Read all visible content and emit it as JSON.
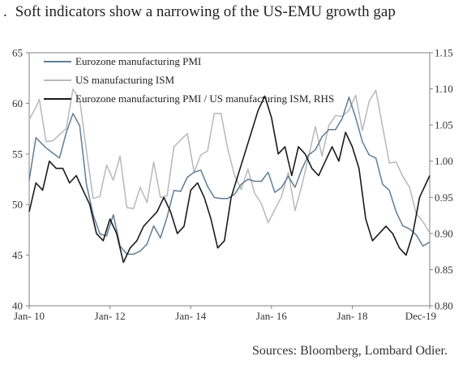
{
  "title": {
    "bullet": ".",
    "text": "Soft indicators show a narrowing of the US-EMU growth gap"
  },
  "source": "Sources: Bloomberg, Lombard Odier.",
  "colors": {
    "eurozone": "#5f7d95",
    "us": "#b8b8b8",
    "ratio": "#1a1a1a",
    "axis": "#808080"
  },
  "chart_data": {
    "type": "line",
    "title": "Soft indicators show a narrowing of the US-EMU growth gap",
    "x_range": [
      "2010-01",
      "2019-12"
    ],
    "y_left": {
      "min": 40,
      "max": 65,
      "ticks": [
        "40",
        "45",
        "50",
        "55",
        "60",
        "65"
      ]
    },
    "y_right": {
      "min": 0.8,
      "max": 1.15,
      "ticks": [
        "0.80",
        "0.85",
        "0.90",
        "0.95",
        "1.00",
        "1.05",
        "1.10",
        "1.15"
      ]
    },
    "x_ticks": [
      {
        "date": "2010-01",
        "label": "Jan- 10"
      },
      {
        "date": "2012-01",
        "label": "Jan- 12"
      },
      {
        "date": "2014-01",
        "label": "Jan- 14"
      },
      {
        "date": "2016-01",
        "label": "Jan- 16"
      },
      {
        "date": "2018-01",
        "label": "Jan- 18"
      },
      {
        "date": "2019-12",
        "label": "Dec-19"
      }
    ],
    "legend_position": "top-left",
    "series": [
      {
        "name": "Eurozone manufacturing PMI",
        "axis": "left",
        "points": [
          [
            "2010-01",
            52.4
          ],
          [
            "2010-03",
            56.6
          ],
          [
            "2010-06",
            55.6
          ],
          [
            "2010-08",
            55.1
          ],
          [
            "2010-10",
            54.6
          ],
          [
            "2010-12",
            57.1
          ],
          [
            "2011-02",
            59.0
          ],
          [
            "2011-04",
            57.8
          ],
          [
            "2011-06",
            52.0
          ],
          [
            "2011-08",
            49.0
          ],
          [
            "2011-10",
            47.1
          ],
          [
            "2011-12",
            46.9
          ],
          [
            "2012-02",
            49.0
          ],
          [
            "2012-04",
            45.9
          ],
          [
            "2012-06",
            45.1
          ],
          [
            "2012-08",
            45.1
          ],
          [
            "2012-10",
            45.4
          ],
          [
            "2012-12",
            46.1
          ],
          [
            "2013-02",
            47.9
          ],
          [
            "2013-04",
            46.7
          ],
          [
            "2013-06",
            48.8
          ],
          [
            "2013-08",
            51.4
          ],
          [
            "2013-10",
            51.3
          ],
          [
            "2013-12",
            52.7
          ],
          [
            "2014-02",
            53.2
          ],
          [
            "2014-04",
            53.4
          ],
          [
            "2014-06",
            51.8
          ],
          [
            "2014-08",
            50.7
          ],
          [
            "2014-10",
            50.6
          ],
          [
            "2014-12",
            50.6
          ],
          [
            "2015-02",
            51.0
          ],
          [
            "2015-04",
            52.0
          ],
          [
            "2015-06",
            52.5
          ],
          [
            "2015-08",
            52.3
          ],
          [
            "2015-10",
            52.3
          ],
          [
            "2015-12",
            53.2
          ],
          [
            "2016-02",
            51.2
          ],
          [
            "2016-04",
            51.7
          ],
          [
            "2016-06",
            52.8
          ],
          [
            "2016-08",
            51.7
          ],
          [
            "2016-10",
            53.5
          ],
          [
            "2016-12",
            54.9
          ],
          [
            "2017-02",
            55.4
          ],
          [
            "2017-04",
            56.7
          ],
          [
            "2017-06",
            57.4
          ],
          [
            "2017-08",
            57.4
          ],
          [
            "2017-10",
            58.5
          ],
          [
            "2017-12",
            60.6
          ],
          [
            "2018-02",
            58.6
          ],
          [
            "2018-04",
            56.2
          ],
          [
            "2018-06",
            54.9
          ],
          [
            "2018-08",
            54.6
          ],
          [
            "2018-10",
            52.0
          ],
          [
            "2018-12",
            51.4
          ],
          [
            "2019-02",
            49.3
          ],
          [
            "2019-04",
            47.9
          ],
          [
            "2019-06",
            47.6
          ],
          [
            "2019-08",
            47.0
          ],
          [
            "2019-10",
            45.9
          ],
          [
            "2019-12",
            46.3
          ]
        ]
      },
      {
        "name": "US manufacturing ISM",
        "axis": "left",
        "points": [
          [
            "2010-01",
            58.4
          ],
          [
            "2010-03",
            59.6
          ],
          [
            "2010-04",
            60.4
          ],
          [
            "2010-06",
            56.2
          ],
          [
            "2010-08",
            56.3
          ],
          [
            "2010-10",
            56.9
          ],
          [
            "2010-12",
            57.5
          ],
          [
            "2011-02",
            61.4
          ],
          [
            "2011-04",
            60.4
          ],
          [
            "2011-06",
            55.3
          ],
          [
            "2011-08",
            50.6
          ],
          [
            "2011-10",
            50.8
          ],
          [
            "2011-12",
            53.9
          ],
          [
            "2012-02",
            52.4
          ],
          [
            "2012-04",
            54.8
          ],
          [
            "2012-06",
            49.7
          ],
          [
            "2012-08",
            49.6
          ],
          [
            "2012-10",
            51.7
          ],
          [
            "2012-12",
            50.2
          ],
          [
            "2013-02",
            54.2
          ],
          [
            "2013-04",
            50.7
          ],
          [
            "2013-06",
            50.9
          ],
          [
            "2013-08",
            55.7
          ],
          [
            "2013-10",
            56.4
          ],
          [
            "2013-12",
            57.0
          ],
          [
            "2014-02",
            53.2
          ],
          [
            "2014-04",
            54.9
          ],
          [
            "2014-06",
            55.3
          ],
          [
            "2014-08",
            59.0
          ],
          [
            "2014-10",
            59.0
          ],
          [
            "2014-12",
            55.5
          ],
          [
            "2015-02",
            52.9
          ],
          [
            "2015-04",
            51.5
          ],
          [
            "2015-06",
            53.5
          ],
          [
            "2015-08",
            51.1
          ],
          [
            "2015-10",
            50.1
          ],
          [
            "2015-12",
            48.2
          ],
          [
            "2016-02",
            49.5
          ],
          [
            "2016-04",
            50.8
          ],
          [
            "2016-06",
            53.2
          ],
          [
            "2016-08",
            49.4
          ],
          [
            "2016-10",
            51.9
          ],
          [
            "2016-12",
            54.7
          ],
          [
            "2017-02",
            57.7
          ],
          [
            "2017-04",
            54.8
          ],
          [
            "2017-06",
            57.8
          ],
          [
            "2017-08",
            58.8
          ],
          [
            "2017-10",
            58.7
          ],
          [
            "2017-12",
            59.3
          ],
          [
            "2018-02",
            60.8
          ],
          [
            "2018-04",
            57.3
          ],
          [
            "2018-06",
            60.2
          ],
          [
            "2018-08",
            61.3
          ],
          [
            "2018-10",
            57.7
          ],
          [
            "2018-12",
            54.1
          ],
          [
            "2019-02",
            54.2
          ],
          [
            "2019-04",
            52.8
          ],
          [
            "2019-06",
            51.7
          ],
          [
            "2019-08",
            49.1
          ],
          [
            "2019-10",
            48.3
          ],
          [
            "2019-12",
            47.2
          ]
        ]
      },
      {
        "name": "Eurozone manufacturing PMI / US manufacturing ISM, RHS",
        "axis": "right",
        "points": [
          [
            "2010-01",
            0.93
          ],
          [
            "2010-03",
            0.97
          ],
          [
            "2010-05",
            0.96
          ],
          [
            "2010-07",
            1.0
          ],
          [
            "2010-09",
            0.99
          ],
          [
            "2010-11",
            0.99
          ],
          [
            "2011-01",
            0.97
          ],
          [
            "2011-03",
            0.98
          ],
          [
            "2011-05",
            0.96
          ],
          [
            "2011-07",
            0.94
          ],
          [
            "2011-09",
            0.9
          ],
          [
            "2011-11",
            0.89
          ],
          [
            "2012-01",
            0.92
          ],
          [
            "2012-03",
            0.9
          ],
          [
            "2012-05",
            0.86
          ],
          [
            "2012-07",
            0.88
          ],
          [
            "2012-09",
            0.89
          ],
          [
            "2012-11",
            0.91
          ],
          [
            "2013-01",
            0.92
          ],
          [
            "2013-03",
            0.93
          ],
          [
            "2013-05",
            0.95
          ],
          [
            "2013-07",
            0.93
          ],
          [
            "2013-09",
            0.9
          ],
          [
            "2013-11",
            0.91
          ],
          [
            "2014-01",
            0.96
          ],
          [
            "2014-03",
            0.97
          ],
          [
            "2014-05",
            0.95
          ],
          [
            "2014-07",
            0.92
          ],
          [
            "2014-09",
            0.88
          ],
          [
            "2014-11",
            0.89
          ],
          [
            "2015-01",
            0.95
          ],
          [
            "2015-03",
            0.98
          ],
          [
            "2015-05",
            1.01
          ],
          [
            "2015-07",
            1.04
          ],
          [
            "2015-09",
            1.07
          ],
          [
            "2015-11",
            1.09
          ],
          [
            "2016-01",
            1.06
          ],
          [
            "2016-03",
            1.01
          ],
          [
            "2016-05",
            1.02
          ],
          [
            "2016-07",
            0.98
          ],
          [
            "2016-09",
            1.02
          ],
          [
            "2016-11",
            1.01
          ],
          [
            "2017-01",
            0.99
          ],
          [
            "2017-03",
            0.98
          ],
          [
            "2017-05",
            1.0
          ],
          [
            "2017-07",
            1.02
          ],
          [
            "2017-09",
            1.0
          ],
          [
            "2017-11",
            1.04
          ],
          [
            "2018-01",
            1.02
          ],
          [
            "2018-03",
            0.99
          ],
          [
            "2018-05",
            0.92
          ],
          [
            "2018-07",
            0.89
          ],
          [
            "2018-09",
            0.9
          ],
          [
            "2018-11",
            0.91
          ],
          [
            "2019-01",
            0.9
          ],
          [
            "2019-03",
            0.88
          ],
          [
            "2019-05",
            0.87
          ],
          [
            "2019-07",
            0.9
          ],
          [
            "2019-09",
            0.95
          ],
          [
            "2019-11",
            0.97
          ],
          [
            "2019-12",
            0.98
          ]
        ]
      }
    ]
  }
}
